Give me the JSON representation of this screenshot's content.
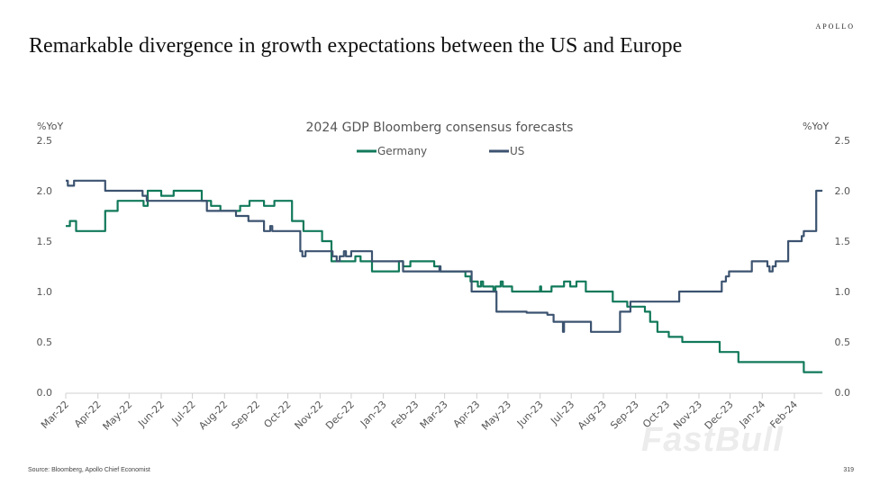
{
  "logo": "APOLLO",
  "slide_title": "Remarkable divergence in growth expectations between the US and Europe",
  "source": "Source: Bloomberg, Apollo Chief Economist",
  "page_number": "319",
  "watermark": "FastBull",
  "chart_data": {
    "type": "line",
    "title": "2024 GDP Bloomberg consensus forecasts",
    "ylabel_left": "%YoY",
    "ylabel_right": "%YoY",
    "ylim": [
      0,
      2.5
    ],
    "yticks": [
      "0.0",
      "0.5",
      "1.0",
      "1.5",
      "2.0",
      "2.5"
    ],
    "xlim": [
      "2022-03-01",
      "2024-03-01"
    ],
    "xtick_labels": [
      "Mar-22",
      "Apr-22",
      "May-22",
      "Jun-22",
      "Jul-22",
      "Aug-22",
      "Sep-22",
      "Oct-22",
      "Nov-22",
      "Dec-22",
      "Jan-23",
      "Feb-23",
      "Mar-23",
      "Apr-23",
      "May-23",
      "Jun-23",
      "Jul-23",
      "Aug-23",
      "Sep-23",
      "Oct-23",
      "Nov-23",
      "Dec-23",
      "Jan-24",
      "Feb-24"
    ],
    "grid": false,
    "legend_position": "top",
    "series": [
      {
        "name": "Germany",
        "color": "#11795a",
        "points": [
          [
            "2022-03-01",
            1.65
          ],
          [
            "2022-03-05",
            1.7
          ],
          [
            "2022-03-11",
            1.6
          ],
          [
            "2022-04-08",
            1.8
          ],
          [
            "2022-04-20",
            1.9
          ],
          [
            "2022-05-15",
            1.85
          ],
          [
            "2022-05-19",
            2.0
          ],
          [
            "2022-06-01",
            1.95
          ],
          [
            "2022-06-13",
            2.0
          ],
          [
            "2022-07-10",
            1.9
          ],
          [
            "2022-07-19",
            1.85
          ],
          [
            "2022-07-28",
            1.8
          ],
          [
            "2022-08-16",
            1.85
          ],
          [
            "2022-08-25",
            1.9
          ],
          [
            "2022-09-08",
            1.85
          ],
          [
            "2022-09-18",
            1.9
          ],
          [
            "2022-10-05",
            1.7
          ],
          [
            "2022-10-16",
            1.6
          ],
          [
            "2022-11-03",
            1.5
          ],
          [
            "2022-11-12",
            1.3
          ],
          [
            "2022-12-05",
            1.35
          ],
          [
            "2022-12-10",
            1.3
          ],
          [
            "2022-12-21",
            1.2
          ],
          [
            "2023-01-16",
            1.3
          ],
          [
            "2023-01-20",
            1.25
          ],
          [
            "2023-01-27",
            1.3
          ],
          [
            "2023-02-19",
            1.25
          ],
          [
            "2023-02-25",
            1.2
          ],
          [
            "2023-03-21",
            1.15
          ],
          [
            "2023-03-26",
            1.1
          ],
          [
            "2023-04-02",
            1.05
          ],
          [
            "2023-04-05",
            1.1
          ],
          [
            "2023-04-07",
            1.05
          ],
          [
            "2023-04-17",
            1.0
          ],
          [
            "2023-04-19",
            1.05
          ],
          [
            "2023-04-24",
            1.1
          ],
          [
            "2023-04-26",
            1.05
          ],
          [
            "2023-05-05",
            1.0
          ],
          [
            "2023-06-01",
            1.05
          ],
          [
            "2023-06-02",
            1.0
          ],
          [
            "2023-06-12",
            1.05
          ],
          [
            "2023-06-24",
            1.1
          ],
          [
            "2023-06-30",
            1.05
          ],
          [
            "2023-07-06",
            1.1
          ],
          [
            "2023-07-15",
            1.0
          ],
          [
            "2023-08-10",
            0.9
          ],
          [
            "2023-08-24",
            0.85
          ],
          [
            "2023-09-10",
            0.8
          ],
          [
            "2023-09-15",
            0.7
          ],
          [
            "2023-09-22",
            0.6
          ],
          [
            "2023-10-03",
            0.55
          ],
          [
            "2023-10-16",
            0.5
          ],
          [
            "2023-11-21",
            0.4
          ],
          [
            "2023-12-09",
            0.3
          ],
          [
            "2024-02-10",
            0.2
          ],
          [
            "2024-02-28",
            0.2
          ]
        ]
      },
      {
        "name": "US",
        "color": "#3c5370",
        "points": [
          [
            "2022-03-01",
            2.1
          ],
          [
            "2022-03-03",
            2.05
          ],
          [
            "2022-03-09",
            2.1
          ],
          [
            "2022-04-08",
            2.0
          ],
          [
            "2022-05-14",
            1.95
          ],
          [
            "2022-05-18",
            1.9
          ],
          [
            "2022-07-15",
            1.8
          ],
          [
            "2022-08-12",
            1.75
          ],
          [
            "2022-08-24",
            1.7
          ],
          [
            "2022-09-08",
            1.6
          ],
          [
            "2022-09-14",
            1.65
          ],
          [
            "2022-09-16",
            1.6
          ],
          [
            "2022-10-13",
            1.4
          ],
          [
            "2022-10-15",
            1.35
          ],
          [
            "2022-10-18",
            1.4
          ],
          [
            "2022-11-13",
            1.35
          ],
          [
            "2022-11-17",
            1.3
          ],
          [
            "2022-11-20",
            1.35
          ],
          [
            "2022-11-24",
            1.4
          ],
          [
            "2022-11-26",
            1.35
          ],
          [
            "2022-12-01",
            1.4
          ],
          [
            "2022-12-21",
            1.3
          ],
          [
            "2023-01-20",
            1.2
          ],
          [
            "2023-02-24",
            1.25
          ],
          [
            "2023-02-25",
            1.2
          ],
          [
            "2023-03-27",
            1.0
          ],
          [
            "2023-04-20",
            0.8
          ],
          [
            "2023-05-19",
            0.79
          ],
          [
            "2023-06-08",
            0.77
          ],
          [
            "2023-06-14",
            0.7
          ],
          [
            "2023-06-23",
            0.6
          ],
          [
            "2023-06-24",
            0.7
          ],
          [
            "2023-07-20",
            0.6
          ],
          [
            "2023-08-17",
            0.8
          ],
          [
            "2023-08-27",
            0.9
          ],
          [
            "2023-10-13",
            1.0
          ],
          [
            "2023-11-23",
            1.1
          ],
          [
            "2023-11-27",
            1.15
          ],
          [
            "2023-11-30",
            1.2
          ],
          [
            "2023-12-22",
            1.3
          ],
          [
            "2024-01-06",
            1.25
          ],
          [
            "2024-01-08",
            1.2
          ],
          [
            "2024-01-11",
            1.25
          ],
          [
            "2024-01-14",
            1.3
          ],
          [
            "2024-01-26",
            1.5
          ],
          [
            "2024-02-08",
            1.55
          ],
          [
            "2024-02-10",
            1.6
          ],
          [
            "2024-02-22",
            2.0
          ],
          [
            "2024-02-28",
            2.0
          ]
        ]
      }
    ]
  }
}
